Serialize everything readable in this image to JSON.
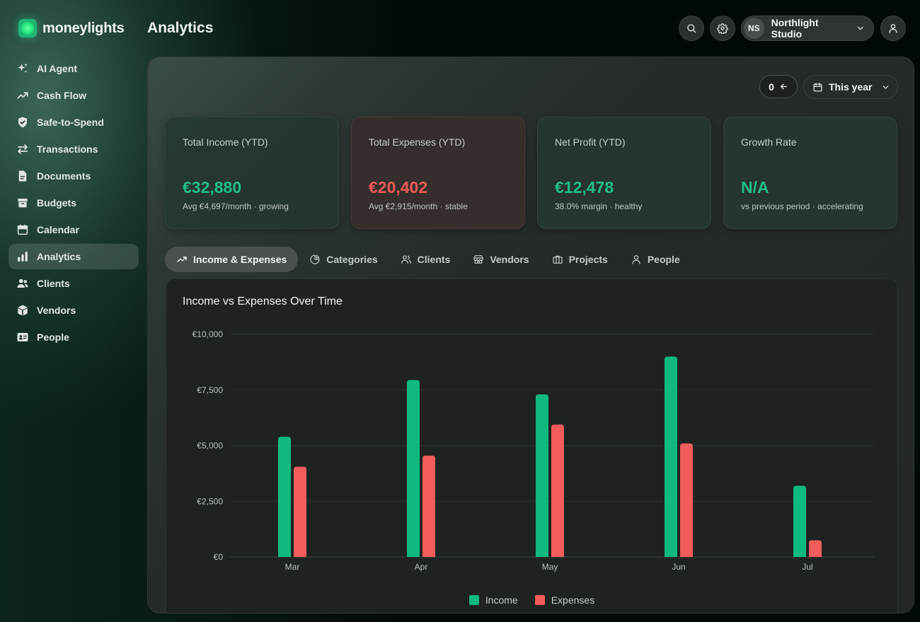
{
  "app": {
    "logo_text": "moneylights",
    "page_title": "Analytics"
  },
  "sidebar": {
    "items": [
      {
        "label": "AI Agent",
        "icon": "sparkles-icon"
      },
      {
        "label": "Cash Flow",
        "icon": "trending-up-icon"
      },
      {
        "label": "Safe-to-Spend",
        "icon": "shield-check-icon"
      },
      {
        "label": "Transactions",
        "icon": "arrows-exchange-icon"
      },
      {
        "label": "Documents",
        "icon": "document-icon"
      },
      {
        "label": "Budgets",
        "icon": "archive-box-icon"
      },
      {
        "label": "Calendar",
        "icon": "calendar-icon"
      },
      {
        "label": "Analytics",
        "icon": "bar-chart-icon",
        "active": true
      },
      {
        "label": "Clients",
        "icon": "users-icon"
      },
      {
        "label": "Vendors",
        "icon": "cube-icon"
      },
      {
        "label": "People",
        "icon": "id-card-icon"
      }
    ]
  },
  "header": {
    "org_initials": "NS",
    "org_name": "Northlight Studio",
    "icons": [
      "search-icon",
      "gear-icon",
      "chevron-down-icon",
      "user-icon"
    ]
  },
  "toolbar": {
    "counter": "0",
    "period": "This year"
  },
  "cards": [
    {
      "label": "Total Income (YTD)",
      "value": "€32,880",
      "sub": "Avg €4,697/month · growing"
    },
    {
      "label": "Total Expenses (YTD)",
      "value": "€20,402",
      "sub": "Avg €2,915/month · stable"
    },
    {
      "label": "Net Profit (YTD)",
      "value": "€12,478",
      "sub": "38.0% margin · healthy"
    },
    {
      "label": "Growth Rate",
      "value": "N/A",
      "sub": "vs previous period · accelerating"
    }
  ],
  "tabs": [
    {
      "label": "Income & Expenses",
      "active": true
    },
    {
      "label": "Categories"
    },
    {
      "label": "Clients"
    },
    {
      "label": "Vendors"
    },
    {
      "label": "Projects"
    },
    {
      "label": "People"
    }
  ],
  "colors": {
    "income": "#10b981",
    "expenses": "#f25c5c",
    "accent": "#1fbf84"
  },
  "chart_data": {
    "type": "bar",
    "title": "Income vs Expenses Over Time",
    "categories": [
      "Mar",
      "Apr",
      "May",
      "Jun",
      "Jul"
    ],
    "series": [
      {
        "name": "Income",
        "values": [
          5400,
          7950,
          7300,
          9000,
          3200
        ]
      },
      {
        "name": "Expenses",
        "values": [
          4050,
          4550,
          5950,
          5100,
          750
        ]
      }
    ],
    "yticks": [
      "€0",
      "€2,500",
      "€5,000",
      "€7,500",
      "€10,000"
    ],
    "ylim": [
      0,
      10000
    ],
    "grid": true,
    "legend": "bottom"
  }
}
